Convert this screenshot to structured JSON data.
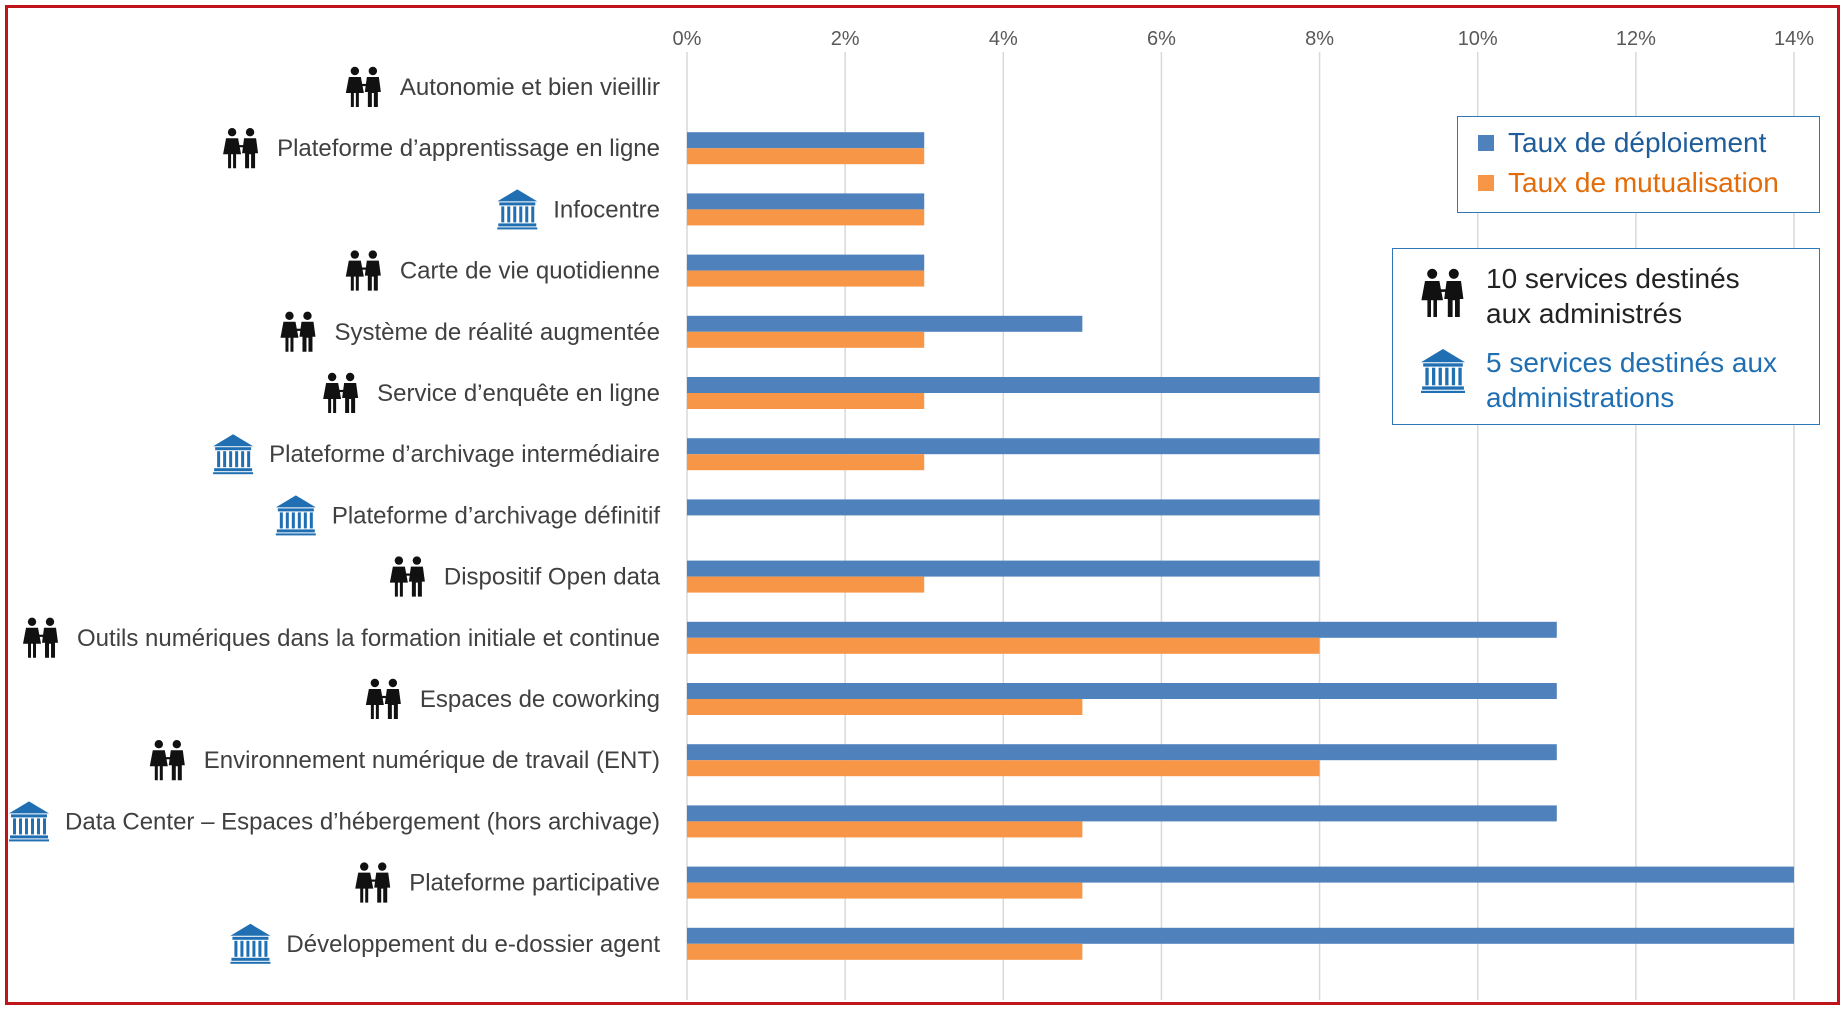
{
  "chart_data": {
    "type": "bar",
    "orientation": "horizontal",
    "title": "",
    "xlabel": "",
    "ylabel": "",
    "xlim": [
      0,
      0.14
    ],
    "ticks": [
      "0%",
      "2%",
      "4%",
      "6%",
      "8%",
      "10%",
      "12%",
      "14%"
    ],
    "tick_values": [
      0,
      0.02,
      0.04,
      0.06,
      0.08,
      0.1,
      0.12,
      0.14
    ],
    "grid": true,
    "categories": [
      {
        "label": "Autonomie et bien vieillir",
        "icon": "people-icon"
      },
      {
        "label": "Plateforme d’apprentissage en ligne",
        "icon": "people-icon"
      },
      {
        "label": "Infocentre",
        "icon": "building-icon"
      },
      {
        "label": "Carte de vie quotidienne",
        "icon": "people-icon"
      },
      {
        "label": "Système de réalité augmentée",
        "icon": "people-icon"
      },
      {
        "label": "Service d’enquête en ligne",
        "icon": "people-icon"
      },
      {
        "label": "Plateforme d’archivage intermédiaire",
        "icon": "building-icon"
      },
      {
        "label": "Plateforme d’archivage définitif",
        "icon": "building-icon"
      },
      {
        "label": "Dispositif Open data",
        "icon": "people-icon"
      },
      {
        "label": "Outils numériques dans la formation initiale et continue",
        "icon": "people-icon"
      },
      {
        "label": "Espaces de coworking",
        "icon": "people-icon"
      },
      {
        "label": "Environnement numérique de travail (ENT)",
        "icon": "people-icon"
      },
      {
        "label": "Data Center – Espaces d’hébergement (hors archivage)",
        "icon": "building-icon"
      },
      {
        "label": "Plateforme participative",
        "icon": "people-icon"
      },
      {
        "label": "Développement du e-dossier agent",
        "icon": "building-icon"
      }
    ],
    "series": [
      {
        "name": "Taux de déploiement",
        "color": "#4f81bd",
        "values": [
          0,
          0.03,
          0.03,
          0.03,
          0.05,
          0.08,
          0.08,
          0.08,
          0.08,
          0.11,
          0.11,
          0.11,
          0.11,
          0.14,
          0.14
        ]
      },
      {
        "name": "Taux de mutualisation",
        "color": "#f79646",
        "values": [
          0,
          0.03,
          0.03,
          0.03,
          0.03,
          0.03,
          0.03,
          0,
          0.03,
          0.08,
          0.05,
          0.08,
          0.05,
          0.05,
          0.05
        ]
      }
    ],
    "legend": {
      "placement": "top-right",
      "items": [
        {
          "label": "Taux de déploiement",
          "color": "#4f81bd",
          "text_color": "#1f5d9a"
        },
        {
          "label": "Taux de mutualisation",
          "color": "#f79646",
          "text_color": "#e36c09"
        }
      ]
    },
    "services_legend": {
      "people": {
        "line1": "10 services destinés",
        "line2": "aux administrés",
        "icon": "people-icon",
        "text_color": "#222222"
      },
      "admin": {
        "line1": "5 services destinés aux",
        "line2": "administrations",
        "icon": "building-icon",
        "text_color": "#1f6fb2"
      }
    }
  }
}
